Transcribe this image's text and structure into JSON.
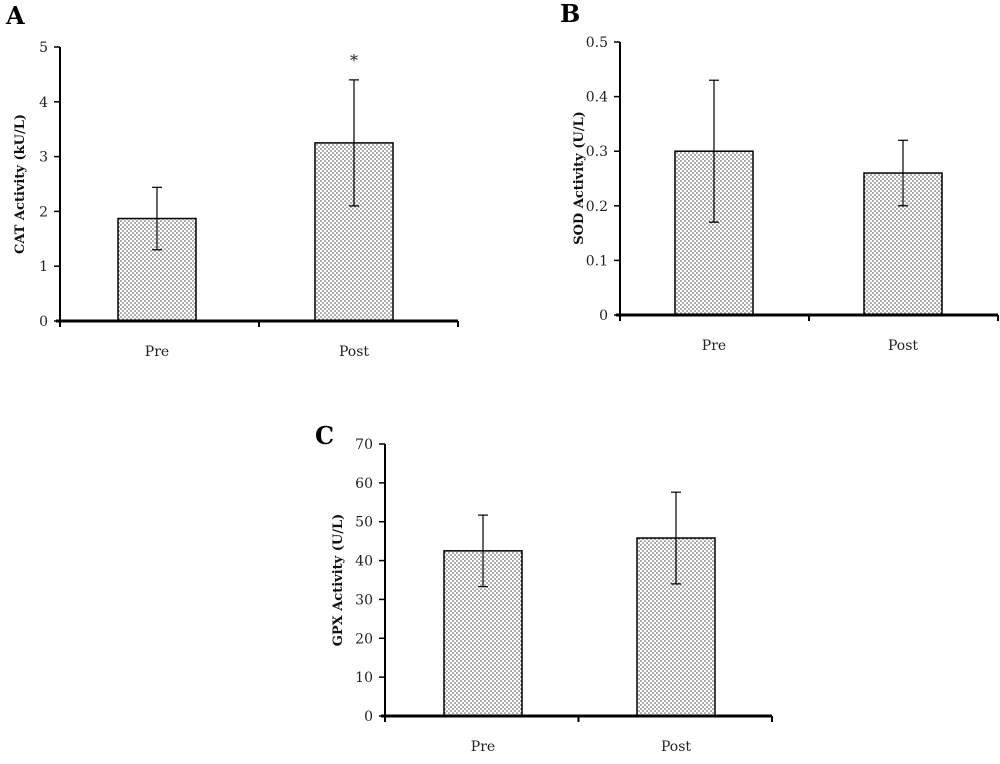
{
  "chart_data": [
    {
      "panel": "A",
      "type": "bar",
      "categories": [
        "Pre",
        "Post"
      ],
      "values": [
        1.87,
        3.25
      ],
      "errors": [
        0.57,
        1.15
      ],
      "annotations": [
        "",
        "*"
      ],
      "ylabel": "CAT Activity (kU/L)",
      "ylim": [
        0,
        5
      ],
      "yticks": [
        "0",
        "1",
        "2",
        "3",
        "4",
        "5"
      ],
      "grid": false
    },
    {
      "panel": "B",
      "type": "bar",
      "categories": [
        "Pre",
        "Post"
      ],
      "values": [
        0.3,
        0.26
      ],
      "errors": [
        0.13,
        0.06
      ],
      "annotations": [
        "",
        ""
      ],
      "ylabel": "SOD Activity (U/L)",
      "ylim": [
        0,
        0.5
      ],
      "yticks": [
        "0",
        "0.1",
        "0.2",
        "0.3",
        "0.4",
        "0.5"
      ],
      "grid": false
    },
    {
      "panel": "C",
      "type": "bar",
      "categories": [
        "Pre",
        "Post"
      ],
      "values": [
        42.5,
        45.8
      ],
      "errors": [
        9.2,
        11.8
      ],
      "annotations": [
        "",
        ""
      ],
      "ylabel": "GPX Activity (U/L)",
      "ylim": [
        0,
        70
      ],
      "yticks": [
        "0",
        "10",
        "20",
        "30",
        "40",
        "50",
        "60",
        "70"
      ],
      "grid": false
    }
  ]
}
